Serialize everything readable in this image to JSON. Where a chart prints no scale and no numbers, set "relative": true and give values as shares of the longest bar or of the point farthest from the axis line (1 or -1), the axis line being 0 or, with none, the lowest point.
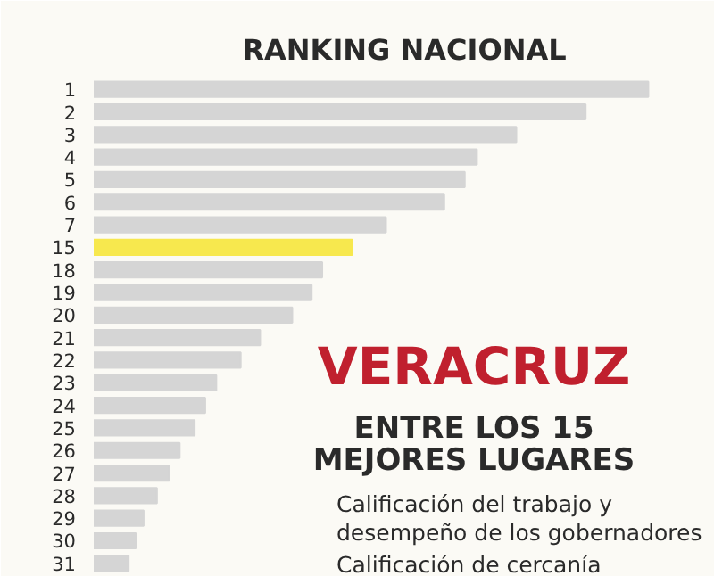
{
  "chart_data": {
    "type": "bar",
    "orientation": "horizontal",
    "relative": true,
    "title": "RANKING NACIONAL",
    "categories": [
      "1",
      "2",
      "3",
      "4",
      "5",
      "6",
      "7",
      "15",
      "18",
      "19",
      "20",
      "21",
      "22",
      "23",
      "24",
      "25",
      "26",
      "27",
      "28",
      "29",
      "30",
      "31"
    ],
    "values": [
      1,
      0.887,
      0.762,
      0.691,
      0.669,
      0.632,
      0.527,
      0.466,
      0.412,
      0.393,
      0.358,
      0.3,
      0.265,
      0.221,
      0.201,
      0.182,
      0.155,
      0.136,
      0.114,
      0.09,
      0.076,
      0.063
    ],
    "colors": [
      "#d5d5d5",
      "#d5d5d5",
      "#d5d5d5",
      "#d5d5d5",
      "#d5d5d5",
      "#d5d5d5",
      "#d5d5d5",
      "#f7e84e",
      "#d5d5d5",
      "#d5d5d5",
      "#d5d5d5",
      "#d5d5d5",
      "#d5d5d5",
      "#d5d5d5",
      "#d5d5d5",
      "#d5d5d5",
      "#d5d5d5",
      "#d5d5d5",
      "#d5d5d5",
      "#d5d5d5",
      "#d5d5d5",
      "#d5d5d5"
    ],
    "annotations": [
      "VERACRUZ",
      "ENTRE LOS 15 MEJORES LUGARES",
      "Calificación del trabajo y desempeño de los gobernadores",
      "Calificación de cercanía"
    ]
  }
}
